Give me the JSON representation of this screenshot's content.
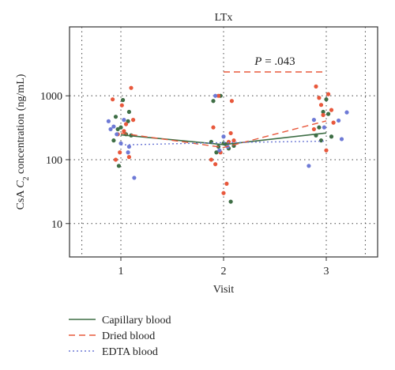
{
  "chart_data": {
    "type": "scatter",
    "title": "LTx",
    "xlabel": "Visit",
    "ylabel": "CsA C₂ concentration (ng/mL)",
    "ylabel_parts": {
      "prefix": "CsA ",
      "italic": "C",
      "subscript": "2",
      "suffix": " concentration (ng/mL)"
    },
    "xlim": [
      0.5,
      3.5
    ],
    "ylim": [
      3,
      12000
    ],
    "yscale": "log",
    "grid": "dotted",
    "x_ticks": [
      1,
      2,
      3
    ],
    "y_ticks": [
      10,
      100,
      1000
    ],
    "y_tick_labels": [
      "10",
      "100",
      "1000"
    ],
    "annotation": {
      "prefix": "P",
      "text": " = .043",
      "from_visit": 2,
      "to_visit": 3
    },
    "series": [
      {
        "name": "Capillary blood",
        "color": "#3e6e45",
        "line_style": "solid",
        "means": [
          [
            1,
            245
          ],
          [
            2,
            172
          ],
          [
            3,
            262
          ]
        ],
        "points": [
          [
            0.93,
            200
          ],
          [
            0.95,
            470
          ],
          [
            0.97,
            300
          ],
          [
            0.98,
            80
          ],
          [
            1.0,
            320
          ],
          [
            1.02,
            860
          ],
          [
            1.05,
            250
          ],
          [
            1.07,
            400
          ],
          [
            1.08,
            560
          ],
          [
            1.1,
            240
          ],
          [
            1.88,
            190
          ],
          [
            1.9,
            830
          ],
          [
            1.93,
            130
          ],
          [
            1.95,
            160
          ],
          [
            1.97,
            1000
          ],
          [
            2.0,
            180
          ],
          [
            2.02,
            175
          ],
          [
            2.05,
            150
          ],
          [
            2.07,
            22
          ],
          [
            2.1,
            165
          ],
          [
            2.9,
            240
          ],
          [
            2.93,
            320
          ],
          [
            2.95,
            200
          ],
          [
            2.97,
            560
          ],
          [
            3.0,
            880
          ],
          [
            3.02,
            520
          ],
          [
            3.05,
            230
          ]
        ]
      },
      {
        "name": "Dried blood",
        "color": "#e8583c",
        "line_style": "dashed",
        "means": [
          [
            1,
            260
          ],
          [
            2,
            155
          ],
          [
            3,
            405
          ]
        ],
        "points": [
          [
            0.92,
            880
          ],
          [
            0.95,
            100
          ],
          [
            0.97,
            250
          ],
          [
            0.99,
            130
          ],
          [
            1.01,
            710
          ],
          [
            1.03,
            280
          ],
          [
            1.05,
            360
          ],
          [
            1.08,
            110
          ],
          [
            1.1,
            1330
          ],
          [
            1.12,
            420
          ],
          [
            1.88,
            100
          ],
          [
            1.9,
            320
          ],
          [
            1.92,
            85
          ],
          [
            1.95,
            1000
          ],
          [
            1.97,
            130
          ],
          [
            2.0,
            30
          ],
          [
            2.03,
            42
          ],
          [
            2.05,
            190
          ],
          [
            2.07,
            260
          ],
          [
            2.08,
            830
          ],
          [
            2.1,
            200
          ],
          [
            2.88,
            300
          ],
          [
            2.9,
            1400
          ],
          [
            2.93,
            930
          ],
          [
            2.95,
            720
          ],
          [
            2.97,
            500
          ],
          [
            3.0,
            140
          ],
          [
            3.02,
            1060
          ],
          [
            3.05,
            600
          ],
          [
            3.07,
            380
          ]
        ]
      },
      {
        "name": "EDTA blood",
        "color": "#6e7ad6",
        "line_style": "dotted",
        "means": [
          [
            1,
            170
          ],
          [
            2,
            185
          ],
          [
            3,
            195
          ]
        ],
        "points": [
          [
            0.88,
            400
          ],
          [
            0.9,
            300
          ],
          [
            0.93,
            330
          ],
          [
            0.96,
            250
          ],
          [
            1.0,
            180
          ],
          [
            1.03,
            420
          ],
          [
            1.07,
            130
          ],
          [
            1.13,
            52
          ],
          [
            1.08,
            160
          ],
          [
            1.92,
            1000
          ],
          [
            1.96,
            140
          ],
          [
            2.0,
            230
          ],
          [
            2.04,
            160
          ],
          [
            2.83,
            80
          ],
          [
            2.88,
            420
          ],
          [
            2.98,
            320
          ],
          [
            3.12,
            410
          ],
          [
            3.15,
            210
          ],
          [
            3.2,
            550
          ]
        ]
      }
    ]
  }
}
